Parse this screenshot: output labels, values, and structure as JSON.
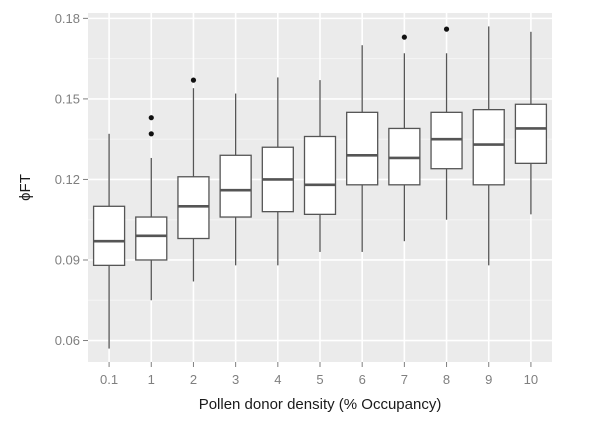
{
  "chart_data": {
    "type": "box",
    "xlabel": "Pollen donor density (% Occupancy)",
    "ylabel": "ϕFT",
    "ylim": [
      0.052,
      0.182
    ],
    "y_ticks": [
      "0.06",
      "0.09",
      "0.12",
      "0.15",
      "0.18"
    ],
    "categories": [
      "0.1",
      "1",
      "2",
      "3",
      "4",
      "5",
      "6",
      "7",
      "8",
      "9",
      "10"
    ],
    "grid": true,
    "colors": {
      "panel": "#ebebeb",
      "grid_major": "#ffffff",
      "grid_minor": "#f5f5f5",
      "box_fill": "#ffffff",
      "box_line": "#555555",
      "outlier": "#111111"
    },
    "boxes": [
      {
        "category": "0.1",
        "min": 0.057,
        "q1": 0.088,
        "median": 0.097,
        "q3": 0.11,
        "max": 0.137,
        "outliers": []
      },
      {
        "category": "1",
        "min": 0.075,
        "q1": 0.09,
        "median": 0.099,
        "q3": 0.106,
        "max": 0.128,
        "outliers": [
          0.137,
          0.143
        ]
      },
      {
        "category": "2",
        "min": 0.082,
        "q1": 0.098,
        "median": 0.11,
        "q3": 0.121,
        "max": 0.154,
        "outliers": [
          0.157
        ]
      },
      {
        "category": "3",
        "min": 0.088,
        "q1": 0.106,
        "median": 0.116,
        "q3": 0.129,
        "max": 0.152,
        "outliers": []
      },
      {
        "category": "4",
        "min": 0.088,
        "q1": 0.108,
        "median": 0.12,
        "q3": 0.132,
        "max": 0.158,
        "outliers": []
      },
      {
        "category": "5",
        "min": 0.093,
        "q1": 0.107,
        "median": 0.118,
        "q3": 0.136,
        "max": 0.157,
        "outliers": []
      },
      {
        "category": "6",
        "min": 0.093,
        "q1": 0.118,
        "median": 0.129,
        "q3": 0.145,
        "max": 0.17,
        "outliers": []
      },
      {
        "category": "7",
        "min": 0.097,
        "q1": 0.118,
        "median": 0.128,
        "q3": 0.139,
        "max": 0.167,
        "outliers": [
          0.173
        ]
      },
      {
        "category": "8",
        "min": 0.105,
        "q1": 0.124,
        "median": 0.135,
        "q3": 0.145,
        "max": 0.167,
        "outliers": [
          0.176
        ]
      },
      {
        "category": "9",
        "min": 0.088,
        "q1": 0.118,
        "median": 0.133,
        "q3": 0.146,
        "max": 0.177,
        "outliers": []
      },
      {
        "category": "10",
        "min": 0.107,
        "q1": 0.126,
        "median": 0.139,
        "q3": 0.148,
        "max": 0.175,
        "outliers": []
      }
    ]
  }
}
